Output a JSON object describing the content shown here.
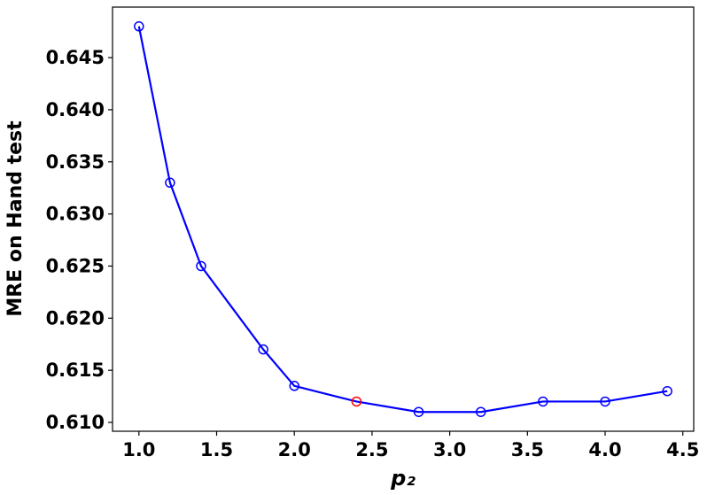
{
  "chart_data": {
    "type": "line",
    "xlabel": "p₂",
    "ylabel": "MRE on Hand test",
    "x": [
      1.0,
      1.2,
      1.4,
      1.8,
      2.0,
      2.4,
      2.8,
      3.2,
      3.6,
      4.0,
      4.4
    ],
    "series": [
      {
        "color": "#0000ff",
        "values": [
          0.648,
          0.633,
          0.625,
          0.617,
          0.6135,
          0.612,
          0.611,
          0.611,
          0.612,
          0.612,
          0.613
        ],
        "marker_colors": [
          "#0000ff",
          "#0000ff",
          "#0000ff",
          "#0000ff",
          "#0000ff",
          "#ff0000",
          "#0000ff",
          "#0000ff",
          "#0000ff",
          "#0000ff",
          "#0000ff"
        ]
      }
    ],
    "xlim": [
      0.83,
      4.57
    ],
    "xticks": [
      {
        "value": 1,
        "label": "1.0"
      },
      1.5,
      {
        "value": 2,
        "label": "2.0"
      },
      2.5,
      {
        "value": 3,
        "label": "3.0"
      },
      3.5,
      {
        "value": 4,
        "label": "4.0"
      },
      4.5
    ],
    "ylim": [
      0.60915,
      0.64985
    ],
    "yticks": [
      {
        "value": 0.61,
        "label": "0.610"
      },
      0.615,
      {
        "value": 0.62,
        "label": "0.620"
      },
      0.625,
      {
        "value": 0.63,
        "label": "0.630"
      },
      0.635,
      {
        "value": 0.64,
        "label": "0.640"
      },
      0.645
    ],
    "grid": false
  }
}
